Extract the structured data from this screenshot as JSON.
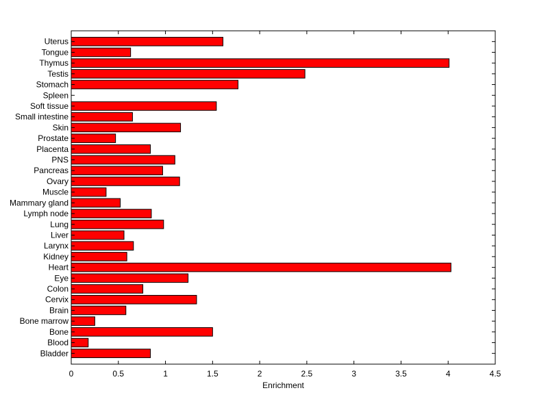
{
  "chart_data": {
    "type": "bar",
    "orientation": "horizontal",
    "title": "",
    "xlabel": "Enrichment",
    "ylabel": "",
    "xlim": [
      0,
      4.5
    ],
    "xticks": [
      "0",
      "0.5",
      "1",
      "1.5",
      "2",
      "2.5",
      "3",
      "3.5",
      "4",
      "4.5"
    ],
    "grid": false,
    "bar_color": "#ff0000",
    "categories": [
      "Uterus",
      "Tongue",
      "Thymus",
      "Testis",
      "Stomach",
      "Spleen",
      "Soft tissue",
      "Small intestine",
      "Skin",
      "Prostate",
      "Placenta",
      "PNS",
      "Pancreas",
      "Ovary",
      "Muscle",
      "Mammary gland",
      "Lymph node",
      "Lung",
      "Liver",
      "Larynx",
      "Kidney",
      "Heart",
      "Eye",
      "Colon",
      "Cervix",
      "Brain",
      "Bone marrow",
      "Bone",
      "Blood",
      "Bladder"
    ],
    "values": [
      1.61,
      0.63,
      4.01,
      2.48,
      1.77,
      0.0,
      1.54,
      0.65,
      1.16,
      0.47,
      0.84,
      1.1,
      0.97,
      1.15,
      0.37,
      0.52,
      0.85,
      0.98,
      0.56,
      0.66,
      0.59,
      4.03,
      1.24,
      0.76,
      1.33,
      0.58,
      0.25,
      1.5,
      0.18,
      0.84
    ]
  }
}
